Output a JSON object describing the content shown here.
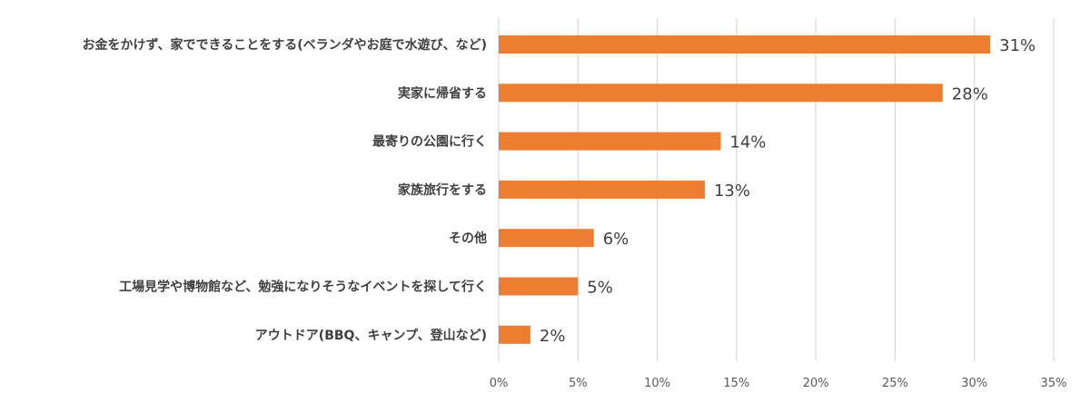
{
  "chart_data": {
    "type": "bar",
    "orientation": "horizontal",
    "categories": [
      "お金をかけず、家でできることをする(ベランダやお庭で水遊び、など)",
      "実家に帰省する",
      "最寄りの公園に行く",
      "家族旅行をする",
      "その他",
      "工場見学や博物館など、勉強になりそうなイベントを探して行く",
      "アウトドア(BBQ、キャンプ、登山など)"
    ],
    "values": [
      31,
      28,
      14,
      13,
      6,
      5,
      2
    ],
    "value_labels": [
      "31%",
      "28%",
      "14%",
      "13%",
      "6%",
      "5%",
      "2%"
    ],
    "xlim": [
      0,
      35
    ],
    "x_ticks": [
      0,
      5,
      10,
      15,
      20,
      25,
      30,
      35
    ],
    "x_tick_labels": [
      "0%",
      "5%",
      "10%",
      "15%",
      "20%",
      "25%",
      "30%",
      "35%"
    ],
    "grid": true,
    "legend": "none",
    "bar_color": "#ED7D31",
    "grid_color": "#D9D9D9"
  }
}
